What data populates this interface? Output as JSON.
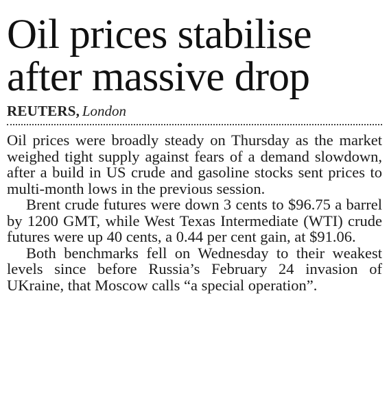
{
  "article": {
    "headline_line1": "Oil prices stabilise",
    "headline_line2": "after massive drop",
    "byline": {
      "agency": "REUTERS",
      "separator": ",",
      "place": "London"
    },
    "paragraphs": [
      "Oil prices were broadly steady on Thursday as the market weighed tight supply against fears of a demand slowdown, after a build in US crude and gasoline stocks sent prices to multi-month lows in the previous session.",
      "Brent crude futures were down 3 cents to $96.75 a barrel by 1200 GMT, while West Texas Intermediate (WTI) crude futures were up 40 cents, a 0.44 per cent gain, at $91.06.",
      "Both benchmarks fell on Wednesday to their weakest levels since before Russia’s February 24 invasion of UKraine, that Moscow calls “a special operation”."
    ]
  }
}
